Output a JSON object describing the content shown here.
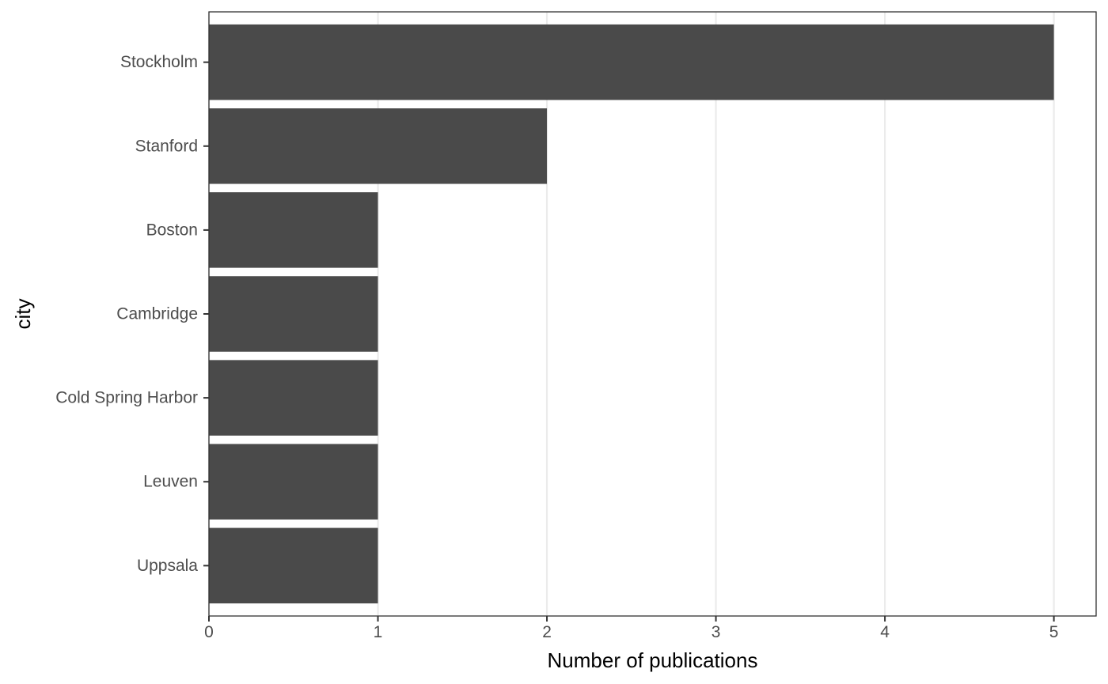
{
  "chart_data": {
    "type": "bar",
    "orientation": "horizontal",
    "categories": [
      "Stockholm",
      "Stanford",
      "Boston",
      "Cambridge",
      "Cold Spring Harbor",
      "Leuven",
      "Uppsala"
    ],
    "values": [
      5,
      2,
      1,
      1,
      1,
      1,
      1
    ],
    "title": "",
    "xlabel": "Number of publications",
    "ylabel": "city",
    "xlim": [
      0,
      5.25
    ],
    "xticks": [
      0,
      1,
      2,
      3,
      4,
      5
    ],
    "grid": "vertical major",
    "legend": "none",
    "colors": {
      "bar": "#4a4a4a",
      "grid": "#ebebeb",
      "panel_border": "#333333",
      "tick_text": "#4d4d4d",
      "title_text": "#000000"
    }
  }
}
